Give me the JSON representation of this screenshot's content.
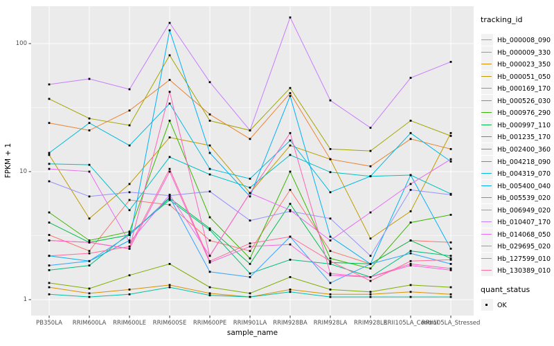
{
  "chart_data": {
    "type": "line",
    "title": "",
    "xlabel": "sample_name",
    "ylabel": "FPKM + 1",
    "y_scale": "log10",
    "ylim": [
      0.7,
      195
    ],
    "yticks": [
      100,
      10,
      1
    ],
    "ytick_labels": [
      "100",
      "10",
      "1"
    ],
    "grid": true,
    "legend_position": "right",
    "legend_title": "tracking_id",
    "quant_legend": {
      "title": "quant_status",
      "label": "OK",
      "marker": "black-square"
    },
    "colors": {
      "panel_bg": "#EBEBEB",
      "gridline": "#FFFFFF",
      "tick_label": "#4D4D4D",
      "marker": "#000000",
      "legend_key_bg": "#F2F2F2"
    },
    "categories": [
      "PB350LA",
      "RRIM600LA",
      "RRIM600LE",
      "RRIM600SE",
      "RRIM600PE",
      "RRIM901LA",
      "RRIM928BA",
      "RRIM928LA",
      "RRIM928LE",
      "RRII105LA_Control",
      "RRII105LA_Stressed"
    ],
    "series": [
      {
        "name": "Hb_000008_090",
        "color": "#F8766D",
        "values": [
          3.2,
          2.4,
          6.0,
          5.5,
          2.9,
          2.4,
          7.2,
          2.4,
          1.9,
          2.9,
          2.8
        ]
      },
      {
        "name": "Hb_000009_330",
        "color": "#EA8331",
        "values": [
          24,
          21,
          30,
          52,
          28,
          18,
          41,
          12.5,
          11,
          18,
          15
        ]
      },
      {
        "name": "Hb_000023_350",
        "color": "#D89000",
        "values": [
          1.25,
          1.12,
          1.2,
          1.3,
          1.12,
          1.05,
          1.2,
          1.1,
          1.1,
          1.15,
          1.1
        ]
      },
      {
        "name": "Hb_000051_050",
        "color": "#C09B00",
        "values": [
          13.5,
          4.3,
          8.0,
          18.5,
          16,
          6.8,
          16,
          12.5,
          3.0,
          4.9,
          20
        ]
      },
      {
        "name": "Hb_000169_170",
        "color": "#A3A500",
        "values": [
          37,
          26,
          23,
          81,
          25,
          21,
          45,
          15,
          14.5,
          25,
          19
        ]
      },
      {
        "name": "Hb_000526_030",
        "color": "#7CAE00",
        "values": [
          1.35,
          1.22,
          1.55,
          1.9,
          1.25,
          1.12,
          1.5,
          1.2,
          1.15,
          1.3,
          1.25
        ]
      },
      {
        "name": "Hb_000976_290",
        "color": "#39B600",
        "values": [
          4.8,
          2.9,
          3.4,
          25,
          4.4,
          2.1,
          10,
          2.1,
          1.75,
          4.0,
          4.6
        ]
      },
      {
        "name": "Hb_000997_110",
        "color": "#00BB4E",
        "values": [
          4.0,
          2.8,
          3.2,
          6.2,
          3.6,
          1.9,
          5.6,
          1.95,
          1.9,
          2.9,
          2.1
        ]
      },
      {
        "name": "Hb_001235_170",
        "color": "#00BF7D",
        "values": [
          1.7,
          1.85,
          3.3,
          6.0,
          3.5,
          1.6,
          2.05,
          1.9,
          1.5,
          2.4,
          2.2
        ]
      },
      {
        "name": "Hb_002400_360",
        "color": "#00C1A3",
        "values": [
          1.1,
          1.05,
          1.1,
          1.25,
          1.08,
          1.05,
          1.15,
          1.05,
          1.05,
          1.05,
          1.05
        ]
      },
      {
        "name": "Hb_004218_090",
        "color": "#00BFC4",
        "values": [
          11.5,
          11.3,
          5.0,
          13,
          9.5,
          7.5,
          13.5,
          9.9,
          9.2,
          9.4,
          6.7
        ]
      },
      {
        "name": "Hb_004319_070",
        "color": "#00BAE0",
        "values": [
          14,
          24,
          16,
          34,
          10.5,
          8.8,
          17.5,
          6.9,
          9.2,
          20,
          12
        ]
      },
      {
        "name": "Hb_005400_040",
        "color": "#00B0F6",
        "values": [
          2.2,
          2.0,
          2.9,
          127,
          14,
          6.4,
          39,
          3.1,
          1.9,
          9.4,
          2.5
        ]
      },
      {
        "name": "Hb_005539_020",
        "color": "#35A2FF",
        "values": [
          1.85,
          2.0,
          3.2,
          6.3,
          1.65,
          1.5,
          3.1,
          1.35,
          1.9,
          2.3,
          1.9
        ]
      },
      {
        "name": "Hb_006949_020",
        "color": "#9590FF",
        "values": [
          8.4,
          6.4,
          6.9,
          6.5,
          7.0,
          4.15,
          4.9,
          4.3,
          2.2,
          7.2,
          6.6
        ]
      },
      {
        "name": "Hb_010407_170",
        "color": "#C77CFF",
        "values": [
          48,
          53,
          44,
          145,
          50,
          21,
          160,
          36,
          22,
          54,
          72
        ]
      },
      {
        "name": "Hb_014068_050",
        "color": "#E76BF3",
        "values": [
          10.5,
          10,
          2.8,
          6.6,
          2.2,
          6.8,
          5.0,
          2.9,
          4.8,
          8.0,
          12.5
        ]
      },
      {
        "name": "Hb_029695_020",
        "color": "#FA62DB",
        "values": [
          2.9,
          2.8,
          2.5,
          10,
          1.95,
          2.6,
          2.7,
          1.55,
          1.5,
          1.85,
          1.7
        ]
      },
      {
        "name": "Hb_127599_010",
        "color": "#FF62BC",
        "values": [
          2.9,
          2.8,
          2.5,
          42,
          2.2,
          6.8,
          20,
          1.6,
          1.5,
          1.9,
          1.75
        ]
      },
      {
        "name": "Hb_130389_010",
        "color": "#FF6A98",
        "values": [
          2.2,
          2.3,
          2.6,
          10.5,
          2.0,
          2.75,
          3.1,
          2.0,
          1.4,
          2.0,
          2.05
        ]
      }
    ]
  }
}
